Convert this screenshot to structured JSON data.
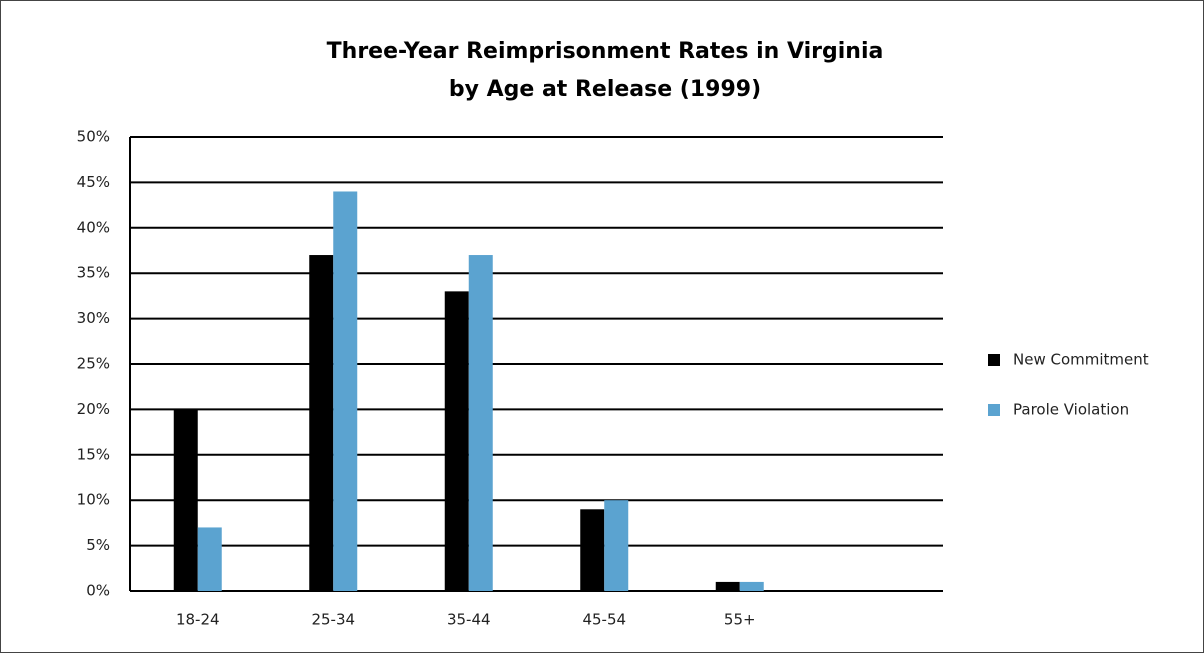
{
  "chart_data": {
    "type": "bar",
    "title": [
      "Three-Year Reimprisonment Rates in Virginia",
      "by Age at Release (1999)"
    ],
    "categories": [
      "18-24",
      "25-34",
      "35-44",
      "45-54",
      "55+",
      null
    ],
    "series": [
      {
        "name": "New Commitment",
        "color": "#000000",
        "values": [
          20,
          37,
          33,
          9,
          1,
          null
        ]
      },
      {
        "name": "Parole Violation",
        "color": "#5ba3d0",
        "values": [
          7,
          44,
          37,
          10,
          1,
          null
        ]
      }
    ],
    "ylim": [
      0,
      50
    ],
    "yticks": [
      {
        "value": 0,
        "label": "0%"
      },
      {
        "value": 5,
        "label": "5%"
      },
      {
        "value": 10,
        "label": "10%"
      },
      {
        "value": 15,
        "label": "15%"
      },
      {
        "value": 20,
        "label": "20%"
      },
      {
        "value": 25,
        "label": "25%"
      },
      {
        "value": 30,
        "label": "30%"
      },
      {
        "value": 35,
        "label": "35%"
      },
      {
        "value": 40,
        "label": "40%"
      },
      {
        "value": 45,
        "label": "45%"
      },
      {
        "value": 50,
        "label": "50%"
      }
    ],
    "grid": true,
    "legend": "right"
  }
}
